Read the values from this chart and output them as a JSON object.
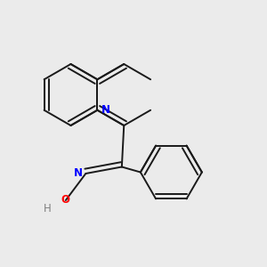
{
  "background_color": "#ebebeb",
  "bond_color": "#1a1a1a",
  "n_color": "#0000ff",
  "o_color": "#ff0000",
  "h_color": "#808080",
  "line_width": 1.4,
  "dbo": 0.018,
  "figsize": [
    3.0,
    3.0
  ],
  "dpi": 100,
  "xlim": [
    0.0,
    1.0
  ],
  "ylim": [
    0.0,
    1.0
  ]
}
